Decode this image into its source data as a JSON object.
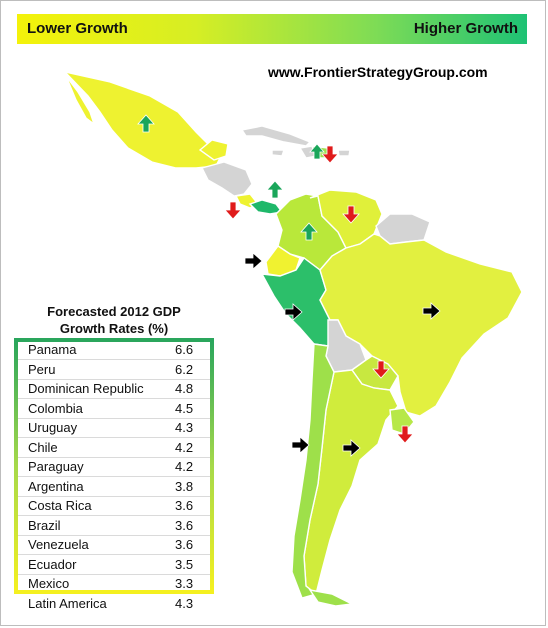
{
  "legend": {
    "low_label": "Lower Growth",
    "high_label": "Higher Growth",
    "gradient_start": "#f4f20a",
    "gradient_end": "#1ec275"
  },
  "source": "www.FrontierStrategyGroup.com",
  "table": {
    "title_line1": "Forecasted 2012 GDP",
    "title_line2": "Growth Rates (%)",
    "rows": [
      {
        "country": "Panama",
        "value": "6.6"
      },
      {
        "country": "Peru",
        "value": "6.2"
      },
      {
        "country": "Dominican Republic",
        "value": "4.8"
      },
      {
        "country": "Colombia",
        "value": "4.5"
      },
      {
        "country": "Uruguay",
        "value": "4.3"
      },
      {
        "country": "Chile",
        "value": "4.2"
      },
      {
        "country": "Paraguay",
        "value": "4.2"
      },
      {
        "country": "Argentina",
        "value": "3.8"
      },
      {
        "country": "Costa Rica",
        "value": "3.6"
      },
      {
        "country": "Brazil",
        "value": "3.6"
      },
      {
        "country": "Venezuela",
        "value": "3.6"
      },
      {
        "country": "Ecuador",
        "value": "3.5"
      },
      {
        "country": "Mexico",
        "value": "3.3"
      },
      {
        "country": "Latin America",
        "value": "4.3"
      }
    ]
  },
  "map_colors": {
    "mexico": "#eef230",
    "central_america_gray": "#d4d4d4",
    "costa_rica": "#eef230",
    "panama": "#1fb86a",
    "colombia": "#b9e83a",
    "venezuela": "#e0f03a",
    "guianas": "#d4d4d4",
    "ecuador": "#f0f230",
    "peru": "#2cbf6a",
    "brazil": "#e2f040",
    "bolivia": "#d4d4d4",
    "paraguay": "#c8e840",
    "uruguay": "#b7e848",
    "argentina": "#d0ec3c",
    "chile": "#9ee04a",
    "caribbean": "#d4d4d4",
    "dominican_republic": "#9ee050"
  },
  "arrows": {
    "up_color": "#1aa65a",
    "down_color": "#e01b1b",
    "flat_color": "#000000"
  }
}
